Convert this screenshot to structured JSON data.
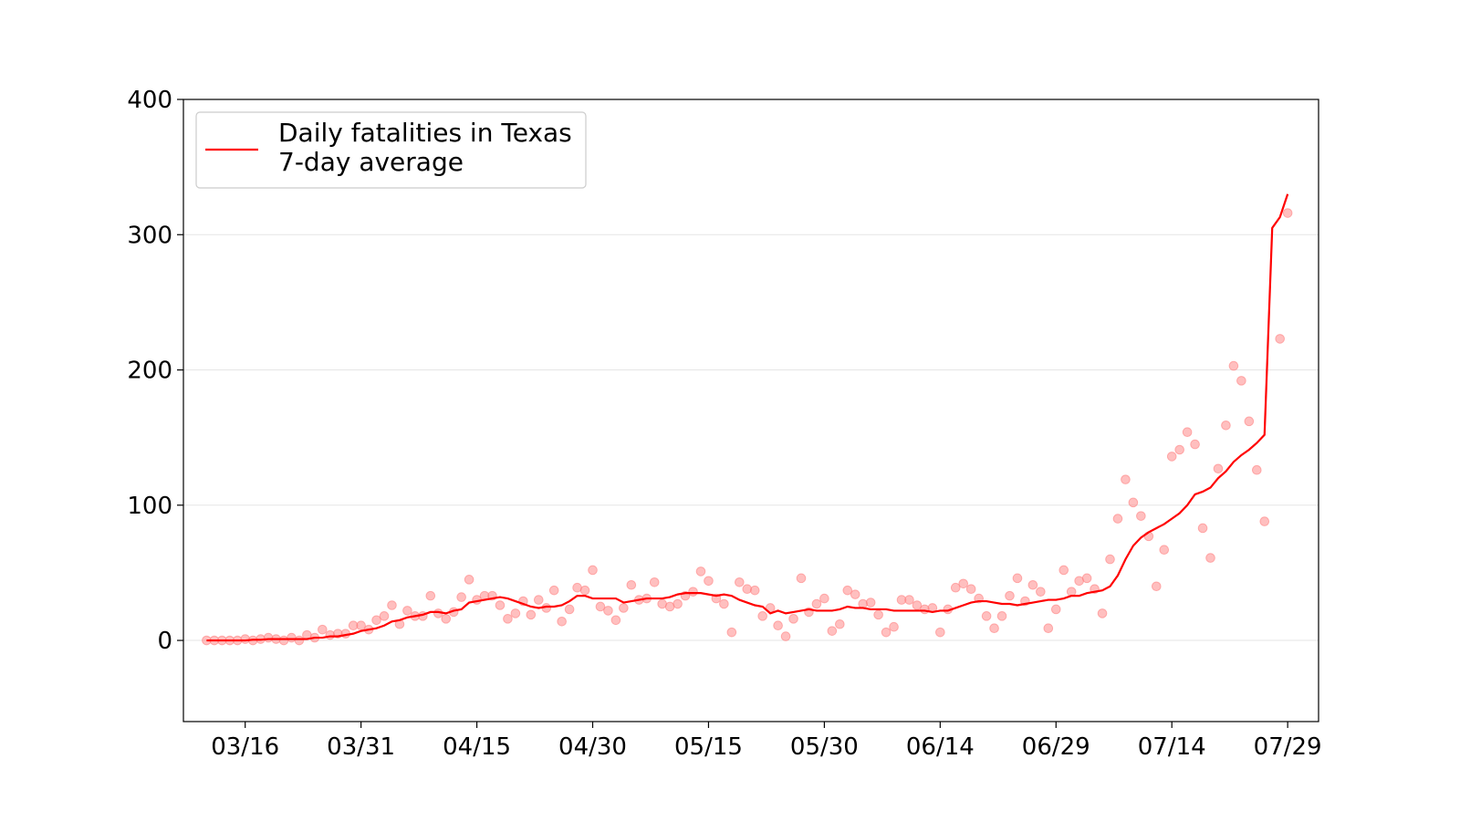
{
  "chart_data": {
    "type": "scatter",
    "legend": {
      "entries": [
        "Daily fatalities in Texas",
        "7-day average"
      ],
      "placement": "top-left"
    },
    "colors": {
      "line": "#ff0000",
      "points": "#ff8080",
      "grid": "#e6e6e6"
    },
    "grid": "horizontal",
    "ylim": [
      -60,
      400
    ],
    "yticks": [
      0,
      100,
      200,
      300,
      400
    ],
    "xlim": [
      "2020-03-08",
      "2020-08-02"
    ],
    "xticks": [
      {
        "date": "2020-03-16",
        "label": "03/16"
      },
      {
        "date": "2020-03-31",
        "label": "03/31"
      },
      {
        "date": "2020-04-15",
        "label": "04/15"
      },
      {
        "date": "2020-04-30",
        "label": "04/30"
      },
      {
        "date": "2020-05-15",
        "label": "05/15"
      },
      {
        "date": "2020-05-30",
        "label": "05/30"
      },
      {
        "date": "2020-06-14",
        "label": "06/14"
      },
      {
        "date": "2020-06-29",
        "label": "06/29"
      },
      {
        "date": "2020-07-14",
        "label": "07/14"
      },
      {
        "date": "2020-07-29",
        "label": "07/29"
      }
    ],
    "series": [
      {
        "name": "Daily fatalities in Texas",
        "kind": "points",
        "start_date": "2020-03-11",
        "values": [
          0,
          0,
          0,
          0,
          0,
          1,
          0,
          1,
          2,
          1,
          0,
          2,
          0,
          4,
          2,
          8,
          4,
          5,
          5,
          11,
          11,
          8,
          15,
          18,
          26,
          12,
          22,
          18,
          18,
          33,
          20,
          16,
          21,
          32,
          45,
          30,
          33,
          33,
          26,
          16,
          20,
          29,
          19,
          30,
          24,
          37,
          14,
          23,
          39,
          37,
          52,
          25,
          22,
          15,
          24,
          41,
          30,
          31,
          43,
          27,
          25,
          27,
          33,
          36,
          51,
          44,
          31,
          27,
          6,
          43,
          38,
          37,
          18,
          24,
          11,
          3,
          16,
          46,
          21,
          27,
          31,
          7,
          12,
          37,
          34,
          27,
          28,
          19,
          6,
          10,
          30,
          30,
          26,
          23,
          24,
          6,
          23,
          39,
          42,
          38,
          31,
          18,
          9,
          18,
          33,
          46,
          29,
          41,
          36,
          9,
          23,
          52,
          36,
          44,
          46,
          38,
          20,
          60,
          90,
          119,
          102,
          92,
          77,
          40,
          67,
          136,
          141,
          154,
          145,
          83,
          61,
          127,
          159,
          203,
          192,
          162,
          126,
          88,
          null,
          223,
          316
        ]
      },
      {
        "name": "7-day average",
        "kind": "line",
        "start_date": "2020-03-11",
        "values": [
          0,
          0,
          0,
          0,
          0,
          0,
          0.5,
          0.5,
          1,
          1,
          1,
          1,
          1,
          1,
          2,
          2,
          3,
          3,
          4,
          5,
          7,
          8,
          9,
          11,
          14,
          15,
          17,
          18,
          19,
          21,
          21,
          20,
          22,
          23,
          28,
          29,
          30,
          31,
          32,
          31,
          29,
          27,
          25,
          24,
          25,
          25,
          26,
          29,
          33,
          33,
          31,
          31,
          31,
          31,
          28,
          29,
          30,
          31,
          31,
          31,
          32,
          34,
          35,
          35,
          35,
          34,
          33,
          34,
          33,
          30,
          28,
          26,
          25,
          20,
          22,
          20,
          21,
          22,
          23,
          22,
          22,
          22,
          23,
          25,
          24,
          24,
          23,
          23,
          23,
          22,
          22,
          22,
          22,
          22,
          21,
          22,
          22,
          24,
          26,
          28,
          29,
          29,
          28,
          27,
          27,
          26,
          27,
          28,
          29,
          30,
          30,
          31,
          33,
          33,
          35,
          36,
          37,
          40,
          48,
          60,
          70,
          76,
          80,
          83,
          86,
          90,
          94,
          100,
          108,
          110,
          113,
          120,
          125,
          132,
          137,
          141,
          146,
          152,
          305,
          313,
          330
        ]
      }
    ]
  }
}
